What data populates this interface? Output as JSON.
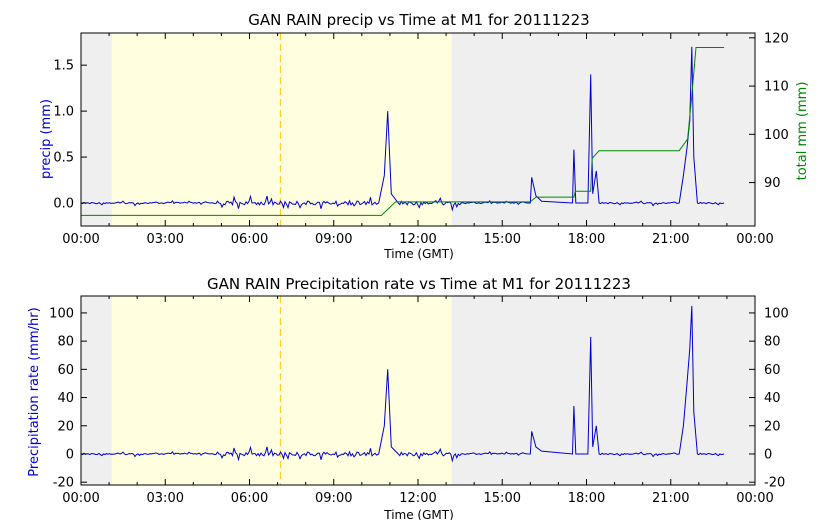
{
  "chart_data": [
    {
      "type": "line",
      "title": "GAN RAIN precip vs Time at M1 for 20111223",
      "xlabel": "Time (GMT)",
      "ylabel_left": "precip (mm)",
      "ylabel_right": "total mm (mm)",
      "x_ticks": [
        "00:00",
        "03:00",
        "06:00",
        "09:00",
        "12:00",
        "15:00",
        "18:00",
        "21:00",
        "00:00"
      ],
      "xlim_hours": [
        0,
        24
      ],
      "ylim_left": [
        -0.25,
        1.85
      ],
      "y_ticks_left": [
        "0.0",
        "0.5",
        "1.0",
        "1.5"
      ],
      "ylim_right": [
        81,
        121
      ],
      "y_ticks_right": [
        "90",
        "100",
        "110",
        "120"
      ],
      "shaded_regions_hours": [
        {
          "start": 0,
          "end": 1.1,
          "color": "#efefef"
        },
        {
          "start": 1.1,
          "end": 13.2,
          "color": "#ffffe0"
        },
        {
          "start": 13.2,
          "end": 24,
          "color": "#efefef"
        }
      ],
      "vline_hour": 7.1,
      "vline_color": "#ffcc33",
      "series": [
        {
          "color": "#0000d0",
          "axis": "left",
          "points": [
            [
              0,
              0.0
            ],
            [
              10.6,
              0.0
            ],
            [
              10.8,
              0.3
            ],
            [
              10.92,
              1.0
            ],
            [
              11.05,
              0.1
            ],
            [
              11.3,
              0.0
            ],
            [
              16.0,
              0.0
            ],
            [
              16.05,
              0.28
            ],
            [
              16.2,
              0.08
            ],
            [
              16.4,
              0.02
            ],
            [
              17.5,
              0.0
            ],
            [
              17.55,
              0.58
            ],
            [
              17.62,
              0.0
            ],
            [
              18.05,
              0.0
            ],
            [
              18.15,
              1.4
            ],
            [
              18.22,
              0.1
            ],
            [
              18.35,
              0.35
            ],
            [
              18.45,
              0.0
            ],
            [
              21.3,
              0.0
            ],
            [
              21.45,
              0.3
            ],
            [
              21.58,
              0.6
            ],
            [
              21.68,
              0.9
            ],
            [
              21.75,
              1.7
            ],
            [
              21.82,
              0.5
            ],
            [
              21.95,
              0.0
            ],
            [
              22.9,
              0.0
            ]
          ]
        },
        {
          "color": "#008800",
          "axis": "right",
          "points": [
            [
              0,
              83.2
            ],
            [
              10.7,
              83.2
            ],
            [
              11.2,
              86.0
            ],
            [
              16.0,
              86.0
            ],
            [
              16.2,
              87.0
            ],
            [
              17.55,
              87.0
            ],
            [
              17.6,
              88.2
            ],
            [
              18.15,
              88.2
            ],
            [
              18.2,
              95.0
            ],
            [
              18.45,
              96.6
            ],
            [
              21.3,
              96.6
            ],
            [
              21.6,
              99.0
            ],
            [
              21.75,
              108.0
            ],
            [
              21.9,
              118.0
            ],
            [
              22.9,
              118.0
            ]
          ]
        }
      ]
    },
    {
      "type": "line",
      "title": "GAN RAIN Precipitation rate vs Time at M1 for 20111223",
      "xlabel": "Time (GMT)",
      "ylabel_left": "Precipitation rate (mm/hr)",
      "x_ticks": [
        "00:00",
        "03:00",
        "06:00",
        "09:00",
        "12:00",
        "15:00",
        "18:00",
        "21:00",
        "00:00"
      ],
      "xlim_hours": [
        0,
        24
      ],
      "ylim": [
        -22,
        112
      ],
      "y_ticks": [
        "-20",
        "0",
        "20",
        "40",
        "60",
        "80",
        "100"
      ],
      "shaded_regions_hours": [
        {
          "start": 0,
          "end": 1.1,
          "color": "#efefef"
        },
        {
          "start": 1.1,
          "end": 13.2,
          "color": "#ffffe0"
        },
        {
          "start": 13.2,
          "end": 24,
          "color": "#efefef"
        }
      ],
      "vline_hour": 7.1,
      "vline_color": "#ffcc33",
      "series": [
        {
          "color": "#0000d0",
          "axis": "left",
          "points": [
            [
              0,
              0
            ],
            [
              10.6,
              0
            ],
            [
              10.8,
              20
            ],
            [
              10.92,
              60
            ],
            [
              11.05,
              5
            ],
            [
              11.3,
              0
            ],
            [
              16.0,
              0
            ],
            [
              16.05,
              16
            ],
            [
              16.2,
              5
            ],
            [
              16.4,
              2
            ],
            [
              17.5,
              0
            ],
            [
              17.55,
              34
            ],
            [
              17.62,
              0
            ],
            [
              18.05,
              0
            ],
            [
              18.15,
              83
            ],
            [
              18.22,
              5
            ],
            [
              18.35,
              20
            ],
            [
              18.45,
              0
            ],
            [
              21.3,
              0
            ],
            [
              21.45,
              20
            ],
            [
              21.58,
              50
            ],
            [
              21.68,
              75
            ],
            [
              21.75,
              105
            ],
            [
              21.82,
              30
            ],
            [
              21.95,
              0
            ],
            [
              22.9,
              0
            ]
          ]
        }
      ]
    }
  ]
}
